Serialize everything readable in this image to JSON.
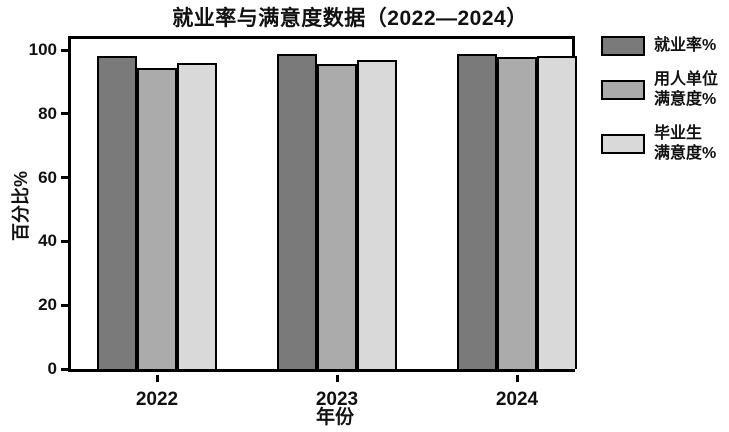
{
  "chart_data": {
    "type": "bar",
    "title": "就业率与满意度数据（2022—2024）",
    "xlabel": "年份",
    "ylabel": "百分比%",
    "categories": [
      "2022",
      "2023",
      "2024"
    ],
    "series": [
      {
        "name": "就业率%",
        "name_lines": [
          "就业率%"
        ],
        "color": "#7a7a7a",
        "values": [
          98.0,
          98.6,
          98.8
        ]
      },
      {
        "name": "用人单位满意度%",
        "name_lines": [
          "用人单位",
          "满意度%"
        ],
        "color": "#ababab",
        "values": [
          94.5,
          95.6,
          97.8
        ]
      },
      {
        "name": "毕业生满意度%",
        "name_lines": [
          "毕业生",
          "满意度%"
        ],
        "color": "#d9d9d9",
        "values": [
          95.8,
          96.9,
          98.1
        ]
      }
    ],
    "ylim": [
      0,
      100
    ],
    "yticks": [
      0,
      20,
      40,
      60,
      80,
      100
    ],
    "grid": false,
    "legend_position": "right",
    "bar_border_color": "#000000",
    "axis_color": "#000000",
    "background": "#ffffff"
  }
}
